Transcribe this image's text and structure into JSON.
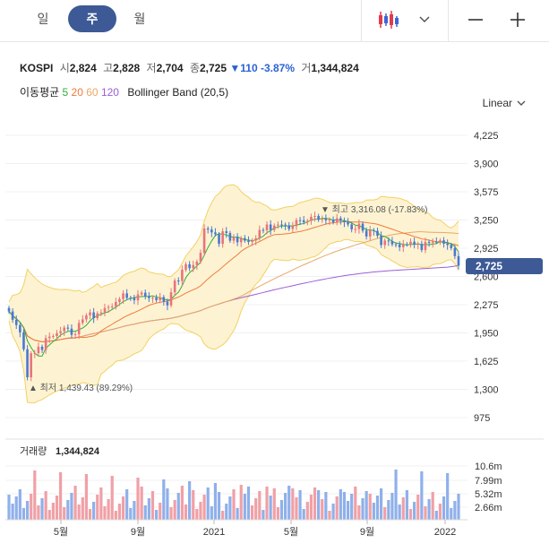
{
  "tabs": [
    {
      "label": "일",
      "active": false
    },
    {
      "label": "주",
      "active": true
    },
    {
      "label": "월",
      "active": false
    }
  ],
  "toolbar": {
    "chart_type_icon": "candlestick-icon",
    "dropdown_icon": "chevron-down-icon",
    "zoom_out_icon": "minus-icon",
    "zoom_in_icon": "plus-icon"
  },
  "quote": {
    "symbol": "KOSPI",
    "open_label": "시",
    "open": "2,824",
    "high_label": "고",
    "high": "2,828",
    "low_label": "저",
    "low": "2,704",
    "close_label": "종",
    "close": "2,725",
    "change": "▼110",
    "change_pct": "-3.87%",
    "volume_label": "거",
    "volume": "1,344,824"
  },
  "indicators": {
    "ma_label": "이동평균",
    "ma": [
      {
        "period": "5",
        "color": "#2fae3c"
      },
      {
        "period": "20",
        "color": "#f07a3a"
      },
      {
        "period": "60",
        "color": "#e9a765"
      },
      {
        "period": "120",
        "color": "#9a5ed6"
      }
    ],
    "bollinger": "Bollinger Band (20,5)"
  },
  "scale": {
    "label": "Linear"
  },
  "colors": {
    "up": "#e8747c",
    "down": "#4a78d2",
    "band_fill": "#fdf3d2",
    "band_line": "#f2d163",
    "accent": "#3d5a96"
  },
  "chart_data": {
    "type": "candlestick",
    "y_ticks": [
      "4,225",
      "3,900",
      "3,575",
      "3,250",
      "2,925",
      "2,600",
      "2,275",
      "1,950",
      "1,625",
      "1,300",
      "975"
    ],
    "ylim": [
      975,
      4225
    ],
    "x_ticks": [
      "5월",
      "9월",
      "2021",
      "5월",
      "9월",
      "2022"
    ],
    "current_price": "2,725",
    "max_annotation": "▼ 최고 3,316.08 (-17.83%)",
    "min_annotation": "▲ 최저 1,439.43 (89.29%)",
    "volume_label": "거래량",
    "volume_value": "1,344,824",
    "volume_ticks": [
      "10.6m",
      "7.99m",
      "5.32m",
      "2.66m"
    ],
    "series": {
      "close": [
        2197,
        2101,
        2040,
        1956,
        1762,
        1439,
        1715,
        1717,
        1791,
        1754,
        1889,
        1907,
        1914,
        1947,
        1970,
        2011,
        1999,
        1928,
        1935,
        2065,
        2106,
        2152,
        2187,
        2119,
        2176,
        2186,
        2237,
        2249,
        2254,
        2306,
        2340,
        2405,
        2353,
        2352,
        2326,
        2393,
        2413,
        2371,
        2351,
        2355,
        2327,
        2362,
        2309,
        2267,
        2418,
        2553,
        2547,
        2677,
        2740,
        2696,
        2731,
        2770,
        2873,
        3152,
        3140,
        3107,
        3086,
        2976,
        3120,
        3100,
        3012,
        3050,
        2994,
        3041,
        3013,
        2997,
        3015,
        3039,
        3136,
        3131,
        3198,
        3135,
        3186,
        3198,
        3197,
        3188,
        3147,
        3179,
        3249,
        3247,
        3224,
        3240,
        3286,
        3297,
        3252,
        3265,
        3246,
        3254,
        3224,
        3270,
        3242,
        3224,
        3199,
        3143,
        3147,
        3208,
        3127,
        3060,
        3133,
        3125,
        3068,
        2962,
        3013,
        3007,
        2970,
        2969,
        2936,
        2971,
        2968,
        3000,
        2968,
        2975,
        2904,
        2998,
        2987,
        3001,
        2998,
        3016,
        2977,
        2962,
        2926,
        2834,
        2725
      ]
    }
  }
}
